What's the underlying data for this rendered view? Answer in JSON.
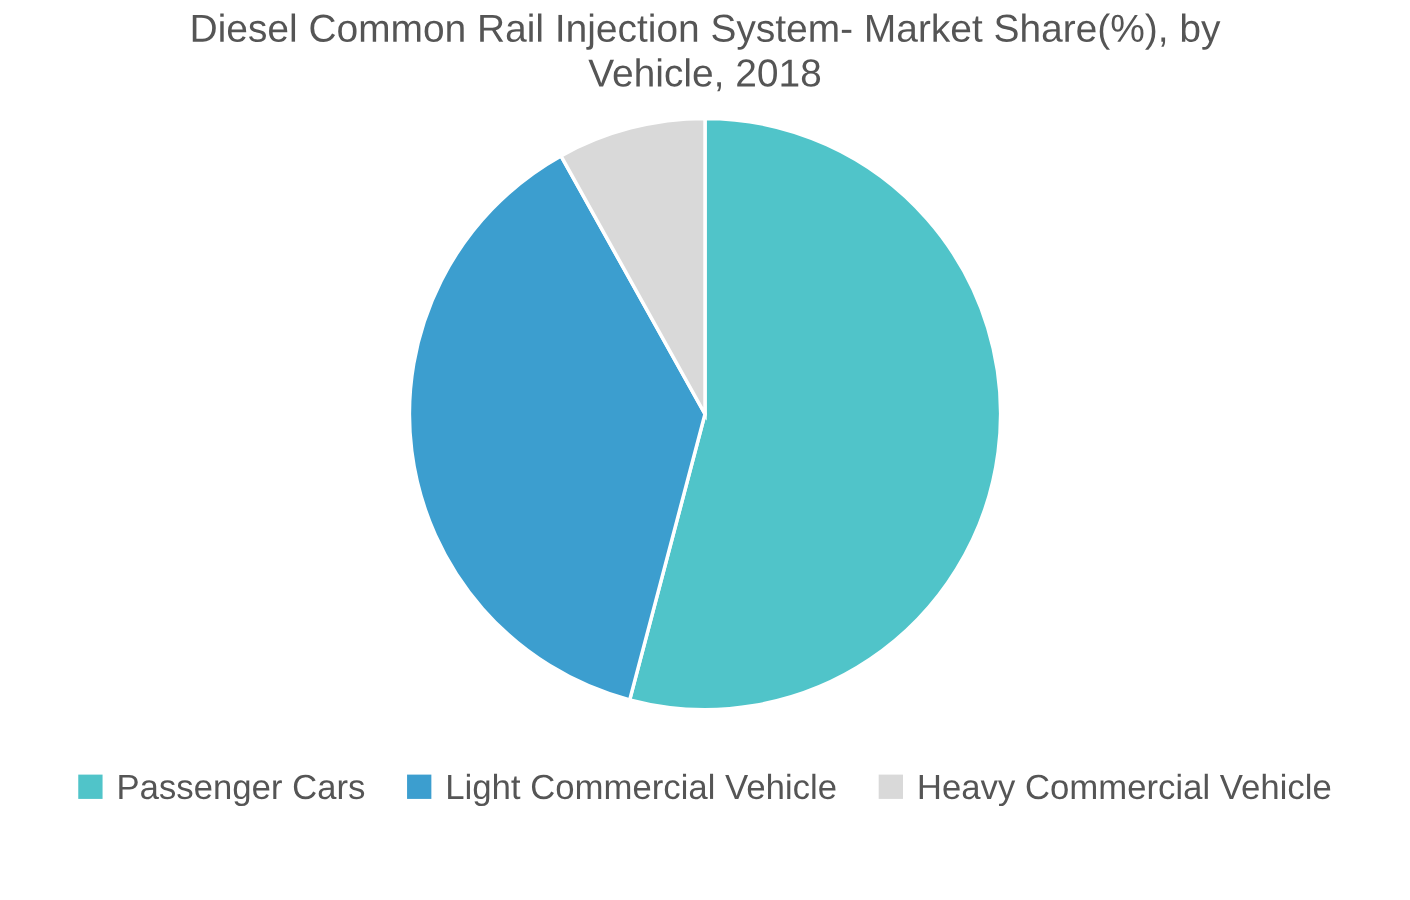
{
  "chart_data": {
    "type": "pie",
    "title": "Diesel Common Rail Injection System- Market Share(%), by Vehicle, 2018",
    "categories": [
      "Passenger Cars",
      "Light Commercial Vehicle",
      "Heavy Commercial Vehicle"
    ],
    "values": [
      54.1,
      37.8,
      8.1
    ],
    "colors": [
      "#50c4c9",
      "#3c9ecf",
      "#d9d9d9"
    ],
    "legend": "bottom"
  }
}
